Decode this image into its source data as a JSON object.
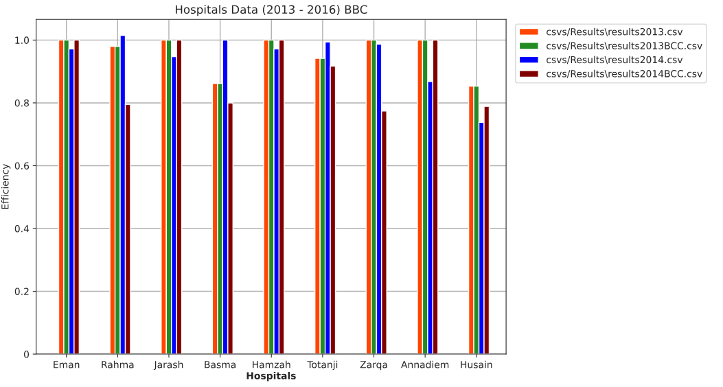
{
  "chart_data": {
    "type": "bar",
    "title": "Hospitals Data (2013 - 2016) BBC",
    "xlabel": "Hospitals",
    "ylabel": "Efficiency",
    "categories": [
      "Eman",
      "Rahma",
      "Jarash",
      "Basma",
      "Hamzah",
      "Totanji",
      "Zarqa",
      "Annadiem",
      "Husain"
    ],
    "series": [
      {
        "name": "csvs/Results\\results2013.csv",
        "color": "#ff4500",
        "values": [
          1.0,
          0.98,
          1.0,
          0.862,
          1.0,
          0.942,
          1.0,
          1.0,
          0.853
        ]
      },
      {
        "name": "csvs/Results\\results2013BCC.csv",
        "color": "#228b22",
        "values": [
          1.0,
          0.98,
          1.0,
          0.862,
          1.0,
          0.942,
          1.0,
          1.0,
          0.853
        ]
      },
      {
        "name": "csvs/Results\\results2014.csv",
        "color": "#0000ff",
        "values": [
          0.972,
          1.015,
          0.947,
          1.0,
          0.972,
          0.994,
          0.987,
          0.868,
          0.738
        ]
      },
      {
        "name": "csvs/Results\\results2014BCC.csv",
        "color": "#800000",
        "values": [
          1.0,
          0.795,
          1.0,
          0.8,
          1.0,
          0.917,
          0.774,
          1.0,
          0.789
        ]
      }
    ],
    "ylim": [
      0,
      1.066
    ],
    "yticks": [
      0,
      0.2,
      0.4,
      0.6,
      0.8,
      {
        "value": 1.0,
        "label": "1.0"
      }
    ],
    "grid": true,
    "legend": "top right"
  }
}
